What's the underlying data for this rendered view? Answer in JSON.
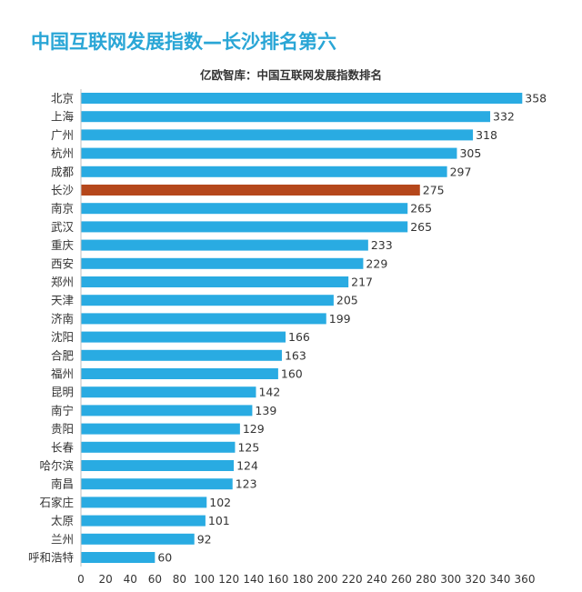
{
  "chart_data": {
    "type": "bar",
    "orientation": "horizontal",
    "title": "中国互联网发展指数—长沙排名第六",
    "subtitle": "亿欧智库：中国互联网发展指数排名",
    "categories": [
      "北京",
      "上海",
      "广州",
      "杭州",
      "成都",
      "长沙",
      "南京",
      "武汉",
      "重庆",
      "西安",
      "郑州",
      "天津",
      "济南",
      "沈阳",
      "合肥",
      "福州",
      "昆明",
      "南宁",
      "贵阳",
      "长春",
      "哈尔滨",
      "南昌",
      "石家庄",
      "太原",
      "兰州",
      "呼和浩特"
    ],
    "values": [
      358,
      332,
      318,
      305,
      297,
      275,
      265,
      265,
      233,
      229,
      217,
      205,
      199,
      166,
      163,
      160,
      142,
      139,
      129,
      125,
      124,
      123,
      102,
      101,
      92,
      60
    ],
    "data_labels": [
      "358",
      "332",
      "318",
      "305",
      "297",
      "275",
      "265",
      "265",
      "233",
      "229",
      "217",
      "205",
      "199",
      "166",
      "163",
      "160",
      "142",
      "139",
      "129",
      "125",
      "124",
      "123",
      "102",
      "101",
      "92",
      "60"
    ],
    "xlim": [
      0,
      360
    ],
    "x_ticks": [
      "0",
      "20",
      "40",
      "60",
      "80",
      "100",
      "120",
      "140",
      "160",
      "180",
      "200",
      "220",
      "240",
      "260",
      "280",
      "300",
      "320",
      "340",
      "360"
    ],
    "highlight_category": "长沙",
    "grid": false,
    "colors": {
      "bar": "#29abe2",
      "highlight": "#b5471b",
      "title": "#2aa6d6",
      "text": "#333333"
    }
  }
}
